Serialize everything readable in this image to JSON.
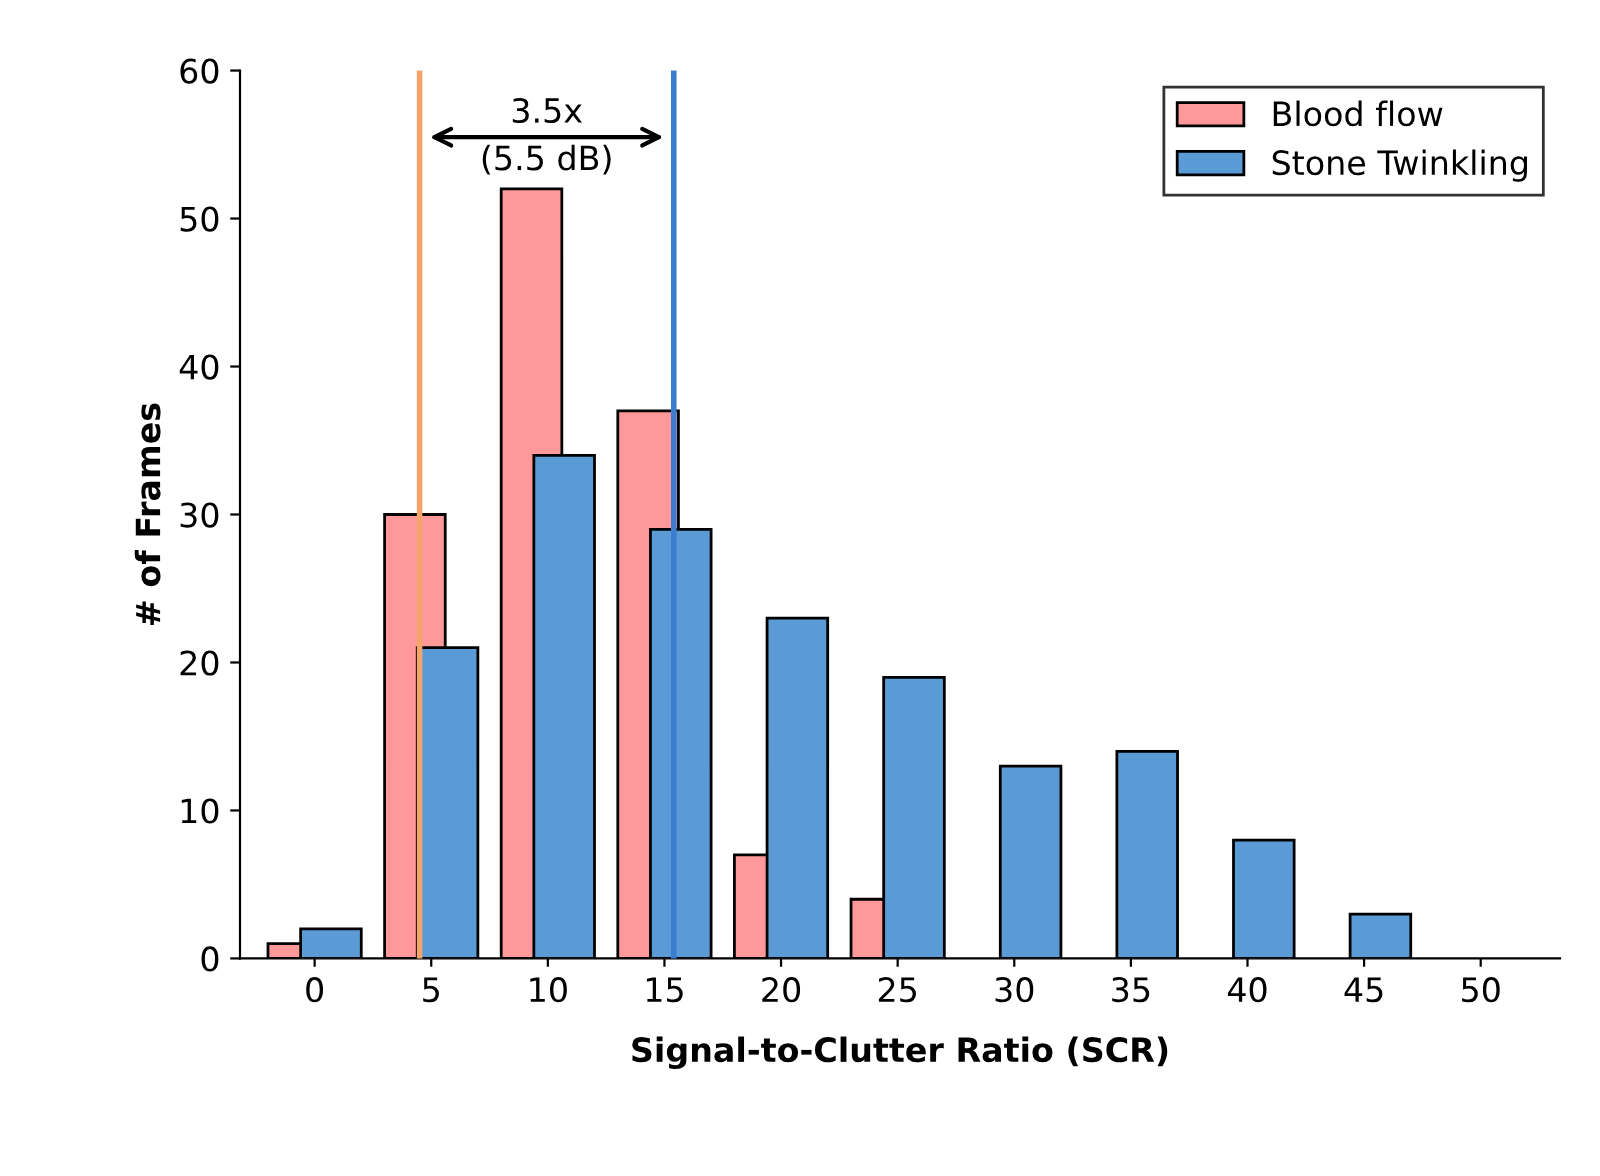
{
  "chart_data": {
    "type": "bar",
    "xlabel": "Signal-to-Clutter Ratio (SCR)",
    "ylabel": "# of Frames",
    "x": [
      0,
      5,
      10,
      15,
      20,
      25,
      30,
      35,
      40,
      45,
      50
    ],
    "series": [
      {
        "name": "Blood flow",
        "color": "#ff9999",
        "values": [
          1,
          30,
          52,
          37,
          7,
          4,
          0,
          0,
          0,
          0,
          0
        ]
      },
      {
        "name": "Stone Twinkling",
        "color": "#5b9bd5",
        "values": [
          2,
          21,
          34,
          29,
          23,
          19,
          13,
          14,
          8,
          3,
          0
        ]
      }
    ],
    "xlim": [
      -3.2,
      53.4
    ],
    "xticks": [
      0,
      5,
      10,
      15,
      20,
      25,
      30,
      35,
      40,
      45,
      50
    ],
    "ylim": [
      0,
      60
    ],
    "yticks": [
      0,
      10,
      20,
      30,
      40,
      50,
      60
    ],
    "ref_lines": [
      {
        "axis": "x",
        "value": 4.5,
        "color": "#f4a46a"
      },
      {
        "axis": "x",
        "value": 15.4,
        "color": "#3c7dd0"
      }
    ],
    "annotations": [
      "3.5x\n(5.5 dB)"
    ],
    "legend": "top right",
    "grid": false
  }
}
